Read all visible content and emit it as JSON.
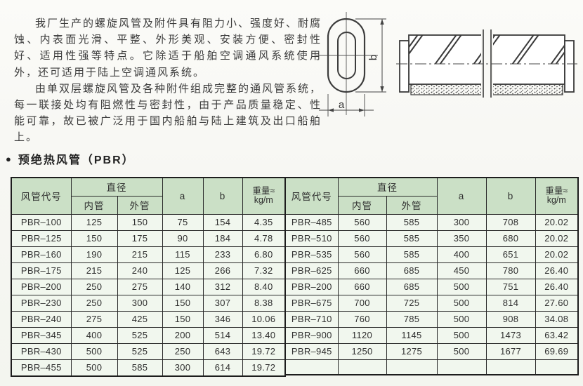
{
  "intro": {
    "paragraph1": "我厂生产的螺旋风管及附件具有阻力小、强度好、耐腐蚀、内表面光滑、平整、外形美观、安装方便、密封性好、适用性强等特点。它除适于船舶空调通风系统使用外，还可适用于陆上空调通风系统。",
    "paragraph2": "由单双层螺旋风管及各种附件组成完整的通风管系统，每一联接处均有阻燃性与密封性，由于产品质量稳定、性能可靠，故已被广泛用于国内船舶与陆上建筑及出口船舶上。"
  },
  "section": {
    "bullet": "●",
    "title": "预绝热风管（PBR）"
  },
  "diagrams": {
    "dim_a_label": "a",
    "dim_b_label": "b"
  },
  "table": {
    "headers": {
      "code": "风管代号",
      "diameter_group": "直径",
      "inner": "内管",
      "outer": "外管",
      "col_a": "a",
      "col_b": "b",
      "weight_line1": "重量≈",
      "weight_line2": "kg/m"
    },
    "left_rows": [
      [
        "PBR–100",
        "125",
        "150",
        "75",
        "154",
        "4.35"
      ],
      [
        "PBR–125",
        "150",
        "175",
        "90",
        "184",
        "4.78"
      ],
      [
        "PBR–160",
        "190",
        "215",
        "115",
        "233",
        "6.80"
      ],
      [
        "PBR–175",
        "215",
        "240",
        "125",
        "266",
        "7.32"
      ],
      [
        "PBR–200",
        "250",
        "275",
        "140",
        "312",
        "8.40"
      ],
      [
        "PBR–230",
        "250",
        "300",
        "150",
        "307",
        "8.38"
      ],
      [
        "PBR–240",
        "275",
        "425",
        "150",
        "346",
        "10.06"
      ],
      [
        "PBR–345",
        "400",
        "525",
        "200",
        "514",
        "13.40"
      ],
      [
        "PBR–430",
        "500",
        "525",
        "250",
        "643",
        "19.72"
      ],
      [
        "PBR–455",
        "500",
        "585",
        "300",
        "614",
        "19.72"
      ]
    ],
    "right_rows": [
      [
        "PBR–485",
        "560",
        "585",
        "300",
        "708",
        "20.02"
      ],
      [
        "PBR–510",
        "560",
        "585",
        "350",
        "680",
        "20.02"
      ],
      [
        "PBR–535",
        "560",
        "585",
        "400",
        "651",
        "20.02"
      ],
      [
        "PBR–625",
        "660",
        "685",
        "450",
        "780",
        "26.40"
      ],
      [
        "PBR–200",
        "660",
        "685",
        "500",
        "751",
        "26.40"
      ],
      [
        "PBR–675",
        "700",
        "725",
        "500",
        "814",
        "27.60"
      ],
      [
        "PBR–710",
        "760",
        "785",
        "500",
        "908",
        "34.08"
      ],
      [
        "PBR–900",
        "1120",
        "1145",
        "500",
        "1473",
        "63.42"
      ],
      [
        "PBR–945",
        "1250",
        "1275",
        "500",
        "1677",
        "69.69"
      ],
      [
        "",
        "",
        "",
        "",
        "",
        ""
      ]
    ]
  },
  "colors": {
    "header_bg": "#cbe0c6",
    "cell_bg": "#f1f7ee",
    "border": "#2a2a2a",
    "text": "#3a3a3a"
  }
}
